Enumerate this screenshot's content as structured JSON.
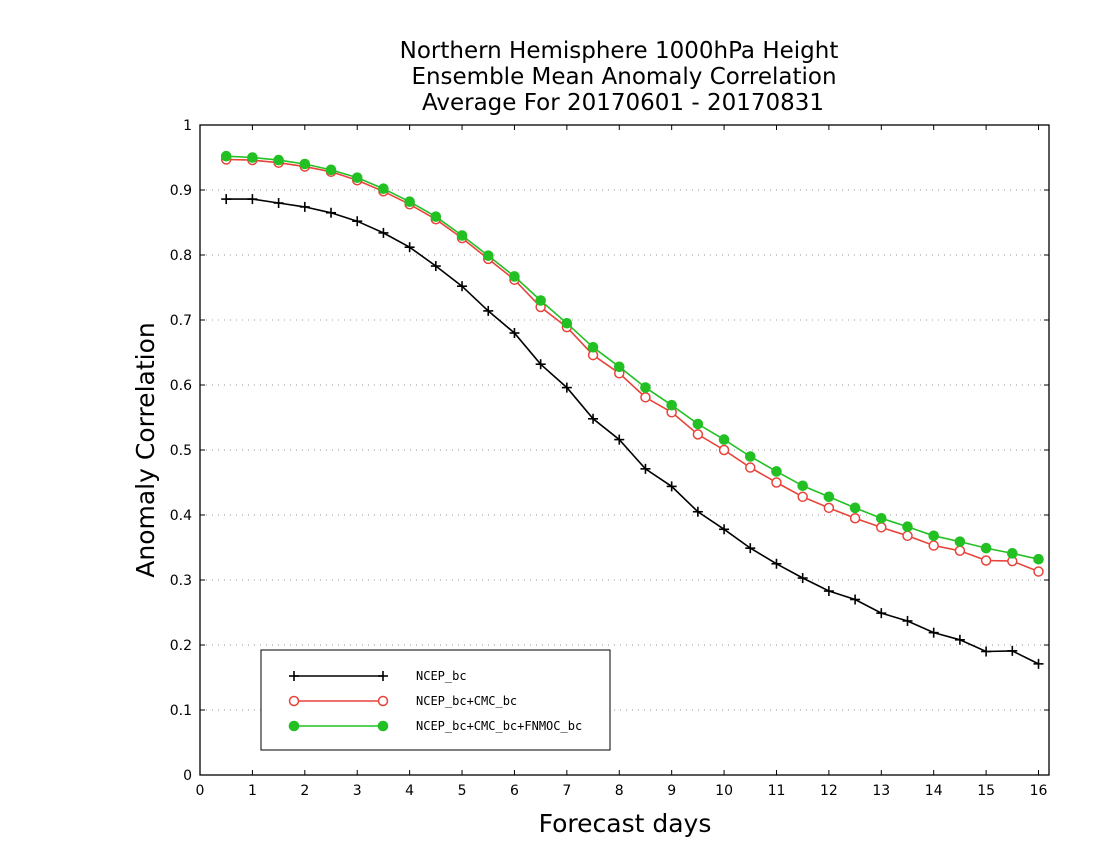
{
  "chart_data": {
    "type": "line",
    "title": [
      "Northern Hemisphere 1000hPa Height",
      "Ensemble Mean Anomaly Correlation",
      "Average For 20170601 - 20170831"
    ],
    "xlabel": "Forecast days",
    "ylabel": "Anomaly Correlation",
    "xlim": [
      0,
      16.2
    ],
    "ylim": [
      0,
      1
    ],
    "xticks": [
      0,
      1,
      2,
      3,
      4,
      5,
      6,
      7,
      8,
      9,
      10,
      11,
      12,
      13,
      14,
      15,
      16
    ],
    "yticks": [
      0,
      0.1,
      0.2,
      0.3,
      0.4,
      0.5,
      0.6,
      0.7,
      0.8,
      0.9,
      1
    ],
    "xticklabels": [
      "0",
      "1",
      "2",
      "3",
      "4",
      "5",
      "6",
      "7",
      "8",
      "9",
      "10",
      "11",
      "12",
      "13",
      "14",
      "15",
      "16"
    ],
    "yticklabels": [
      "0",
      "0.1",
      "0.2",
      "0.3",
      "0.4",
      "0.5",
      "0.6",
      "0.7",
      "0.8",
      "0.9",
      "1"
    ],
    "grid": true,
    "legend_position": "bottom-left",
    "x": [
      0.5,
      1,
      1.5,
      2,
      2.5,
      3,
      3.5,
      4,
      4.5,
      5,
      5.5,
      6,
      6.5,
      7,
      7.5,
      8,
      8.5,
      9,
      9.5,
      10,
      10.5,
      11,
      11.5,
      12,
      12.5,
      13,
      13.5,
      14,
      14.5,
      15,
      15.5,
      16
    ],
    "series": [
      {
        "name": "NCEP_bc",
        "color": "#000000",
        "marker": "plus",
        "values": [
          0.886,
          0.886,
          0.88,
          0.874,
          0.865,
          0.852,
          0.834,
          0.812,
          0.783,
          0.752,
          0.714,
          0.68,
          0.632,
          0.596,
          0.548,
          0.516,
          0.471,
          0.444,
          0.405,
          0.378,
          0.349,
          0.325,
          0.303,
          0.283,
          0.27,
          0.249,
          0.237,
          0.219,
          0.208,
          0.19,
          0.191,
          0.171
        ]
      },
      {
        "name": "NCEP_bc+CMC_bc",
        "color": "#e8433a",
        "marker": "open-circle",
        "values": [
          0.947,
          0.946,
          0.942,
          0.936,
          0.928,
          0.915,
          0.898,
          0.878,
          0.855,
          0.826,
          0.794,
          0.762,
          0.72,
          0.689,
          0.646,
          0.618,
          0.581,
          0.558,
          0.524,
          0.5,
          0.473,
          0.45,
          0.428,
          0.411,
          0.395,
          0.381,
          0.368,
          0.353,
          0.345,
          0.33,
          0.329,
          0.313
        ]
      },
      {
        "name": "NCEP_bc+CMC_bc+FNMOC_bc",
        "color": "#22c022",
        "marker": "filled-circle",
        "values": [
          0.952,
          0.95,
          0.946,
          0.94,
          0.931,
          0.919,
          0.902,
          0.882,
          0.859,
          0.83,
          0.799,
          0.767,
          0.73,
          0.695,
          0.658,
          0.628,
          0.596,
          0.569,
          0.54,
          0.516,
          0.49,
          0.467,
          0.445,
          0.428,
          0.411,
          0.395,
          0.382,
          0.368,
          0.359,
          0.349,
          0.341,
          0.332
        ]
      }
    ]
  }
}
